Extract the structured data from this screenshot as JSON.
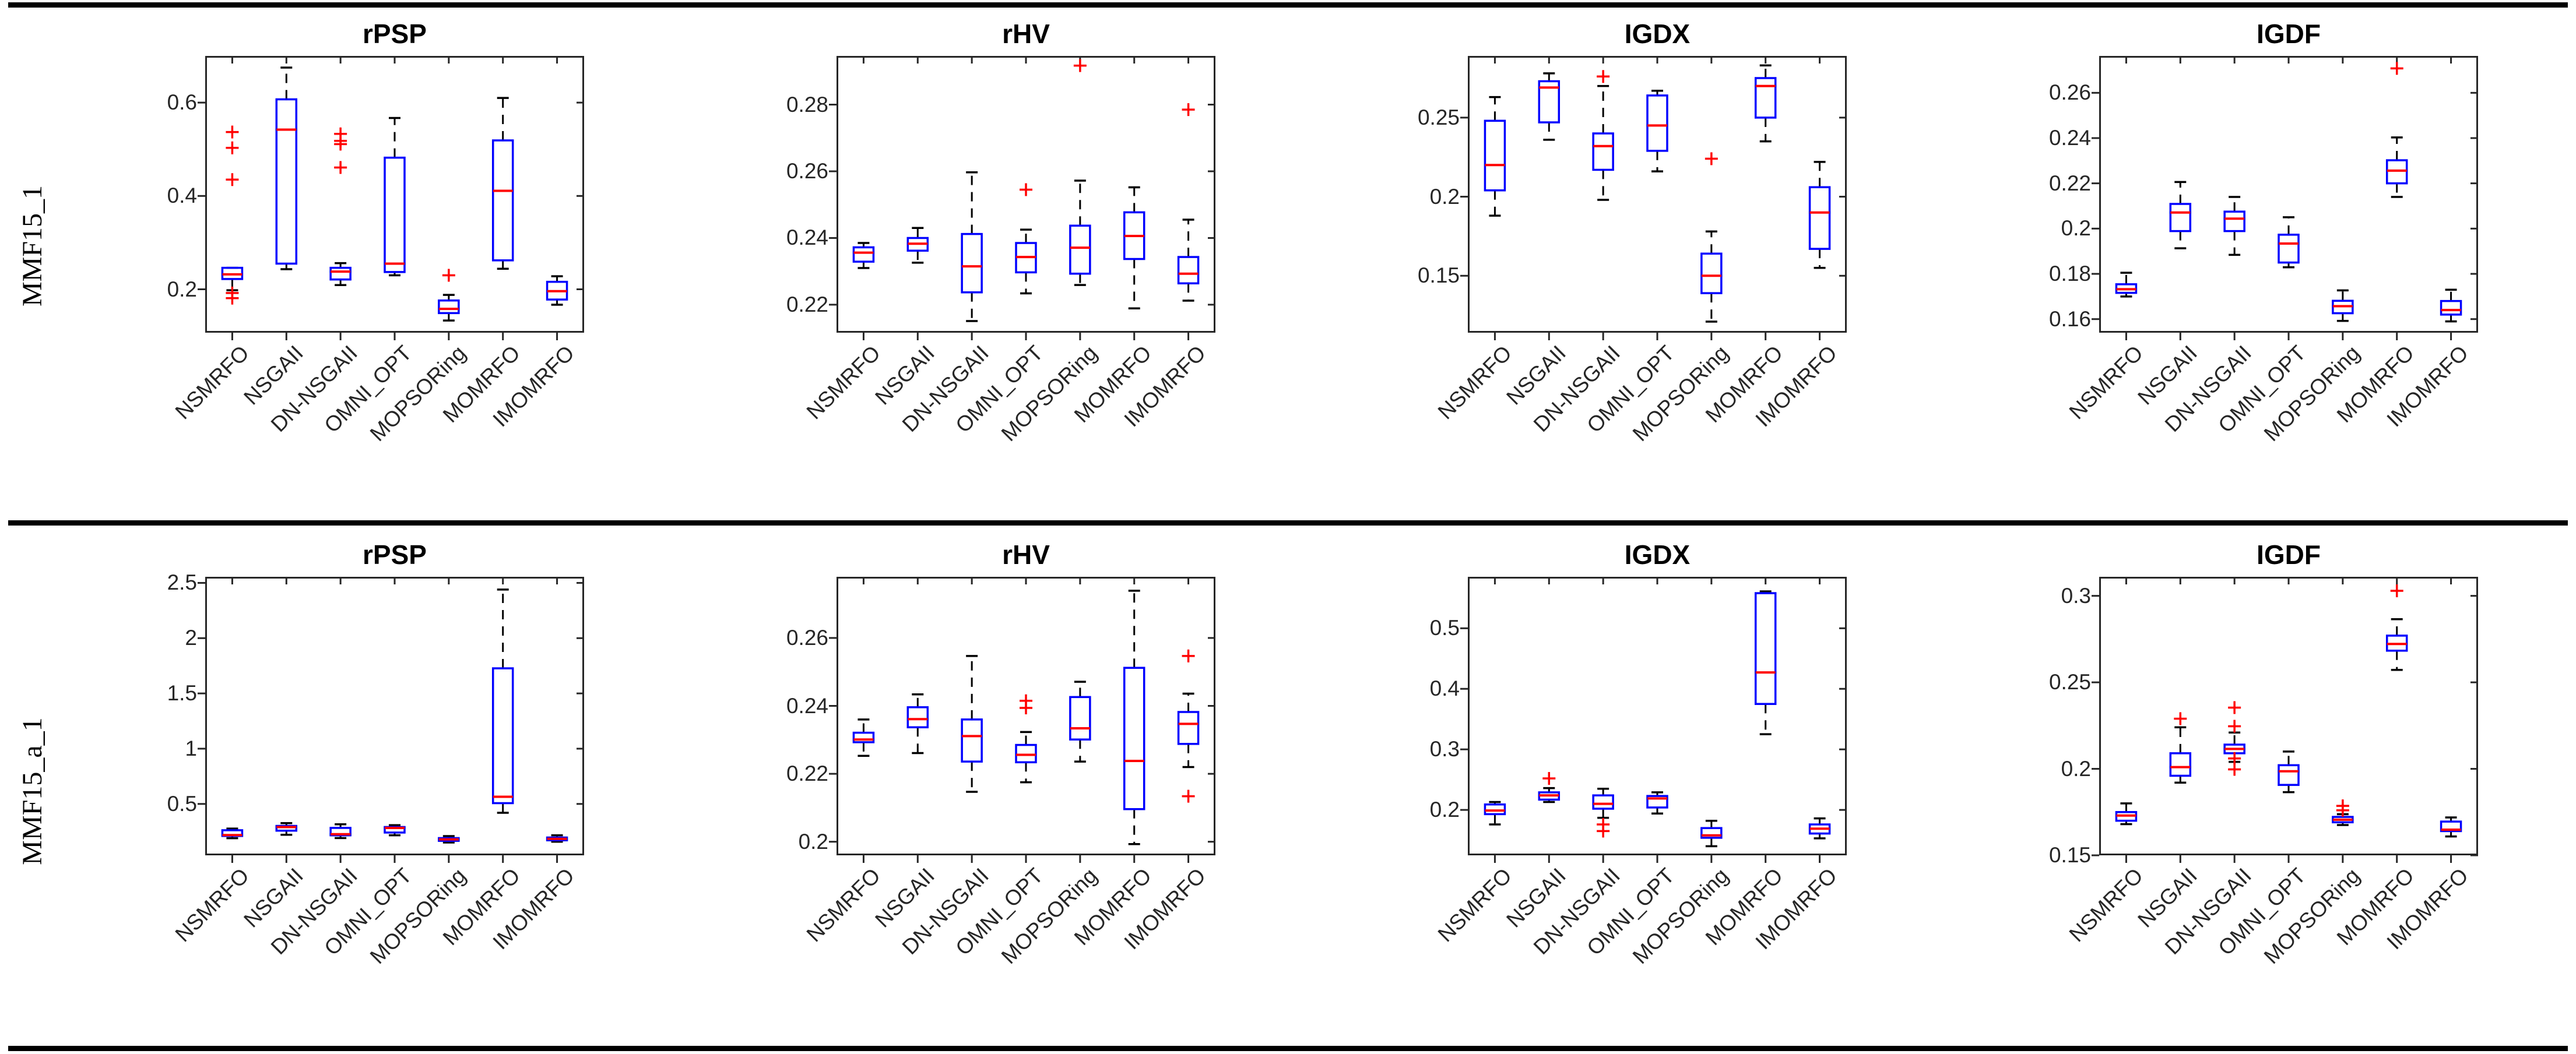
{
  "row_labels": [
    "MMF15_1",
    "MMF15_a_1"
  ],
  "metrics": [
    "rPSP",
    "rHV",
    "IGDX",
    "IGDF"
  ],
  "algorithms": [
    "NSMRFO",
    "NSGAII",
    "DN-NSGAII",
    "OMNI_OPT",
    "MOPSORing",
    "MOMRFO",
    "IMOMRFO"
  ],
  "colors": {
    "box_edge": "#0000ff",
    "median": "#ff0000",
    "whisker": "#000000",
    "outlier": "#ff0000",
    "axis": "#262626",
    "tick_label": "#262626",
    "title": "#000000",
    "rule": "#000000",
    "background": "#ffffff"
  },
  "chart_data": [
    {
      "type": "boxplot",
      "row": "MMF15_1",
      "title": "rPSP",
      "ylim": [
        0.107,
        0.7
      ],
      "yticks": [
        0.2,
        0.4,
        0.6
      ],
      "ytick_labels": [
        "0.2",
        "0.4",
        "0.6"
      ],
      "categories": [
        "NSMRFO",
        "NSGAII",
        "DN-NSGAII",
        "OMNI_OPT",
        "MOPSORing",
        "MOMRFO",
        "IMOMRFO"
      ],
      "series": [
        {
          "name": "NSMRFO",
          "whislo": 0.198,
          "q1": 0.222,
          "med": 0.232,
          "q3": 0.246,
          "whishi": 0.246,
          "fliers": [
            0.537,
            0.503,
            0.435,
            0.192,
            0.181
          ]
        },
        {
          "name": "NSGAII",
          "whislo": 0.243,
          "q1": 0.255,
          "med": 0.542,
          "q3": 0.607,
          "whishi": 0.675,
          "fliers": []
        },
        {
          "name": "DN-NSGAII",
          "whislo": 0.209,
          "q1": 0.221,
          "med": 0.238,
          "q3": 0.246,
          "whishi": 0.256,
          "fliers": [
            0.533,
            0.518,
            0.511,
            0.461
          ]
        },
        {
          "name": "OMNI_OPT",
          "whislo": 0.23,
          "q1": 0.237,
          "med": 0.255,
          "q3": 0.482,
          "whishi": 0.567,
          "fliers": []
        },
        {
          "name": "MOPSORing",
          "whislo": 0.133,
          "q1": 0.149,
          "med": 0.158,
          "q3": 0.176,
          "whishi": 0.188,
          "fliers": [
            0.23
          ]
        },
        {
          "name": "MOMRFO",
          "whislo": 0.244,
          "q1": 0.262,
          "med": 0.411,
          "q3": 0.519,
          "whishi": 0.61,
          "fliers": []
        },
        {
          "name": "IMOMRFO",
          "whislo": 0.167,
          "q1": 0.178,
          "med": 0.196,
          "q3": 0.216,
          "whishi": 0.228,
          "fliers": []
        }
      ]
    },
    {
      "type": "boxplot",
      "row": "MMF15_1",
      "title": "rHV",
      "ylim": [
        0.2116,
        0.2946
      ],
      "yticks": [
        0.22,
        0.24,
        0.26,
        0.28
      ],
      "ytick_labels": [
        "0.22",
        "0.24",
        "0.26",
        "0.28"
      ],
      "categories": [
        "NSMRFO",
        "NSGAII",
        "DN-NSGAII",
        "OMNI_OPT",
        "MOPSORing",
        "MOMRFO",
        "IMOMRFO"
      ],
      "series": [
        {
          "name": "NSMRFO",
          "whislo": 0.231,
          "q1": 0.2329,
          "med": 0.2356,
          "q3": 0.2372,
          "whishi": 0.2385,
          "fliers": []
        },
        {
          "name": "NSGAII",
          "whislo": 0.2326,
          "q1": 0.2362,
          "med": 0.2383,
          "q3": 0.24,
          "whishi": 0.243,
          "fliers": []
        },
        {
          "name": "DN-NSGAII",
          "whislo": 0.2151,
          "q1": 0.2237,
          "med": 0.2315,
          "q3": 0.2412,
          "whishi": 0.2597,
          "fliers": []
        },
        {
          "name": "OMNI_OPT",
          "whislo": 0.2234,
          "q1": 0.2297,
          "med": 0.2343,
          "q3": 0.2385,
          "whishi": 0.2425,
          "fliers": [
            0.2545
          ]
        },
        {
          "name": "MOPSORing",
          "whislo": 0.2259,
          "q1": 0.2293,
          "med": 0.2371,
          "q3": 0.2437,
          "whishi": 0.2572,
          "fliers": [
            0.2917
          ]
        },
        {
          "name": "MOMRFO",
          "whislo": 0.2189,
          "q1": 0.2337,
          "med": 0.2406,
          "q3": 0.2477,
          "whishi": 0.2552,
          "fliers": []
        },
        {
          "name": "IMOMRFO",
          "whislo": 0.2212,
          "q1": 0.2264,
          "med": 0.2293,
          "q3": 0.2343,
          "whishi": 0.2455,
          "fliers": [
            0.2785
          ]
        }
      ]
    },
    {
      "type": "boxplot",
      "row": "MMF15_1",
      "title": "IGDX",
      "ylim": [
        0.114,
        0.289
      ],
      "yticks": [
        0.15,
        0.2,
        0.25
      ],
      "ytick_labels": [
        "0.15",
        "0.2",
        "0.25"
      ],
      "categories": [
        "NSMRFO",
        "NSGAII",
        "DN-NSGAII",
        "OMNI_OPT",
        "MOPSORing",
        "MOMRFO",
        "IMOMRFO"
      ],
      "series": [
        {
          "name": "NSMRFO",
          "whislo": 0.188,
          "q1": 0.204,
          "med": 0.22,
          "q3": 0.248,
          "whishi": 0.263,
          "fliers": []
        },
        {
          "name": "NSGAII",
          "whislo": 0.236,
          "q1": 0.247,
          "med": 0.269,
          "q3": 0.273,
          "whishi": 0.278,
          "fliers": []
        },
        {
          "name": "DN-NSGAII",
          "whislo": 0.198,
          "q1": 0.217,
          "med": 0.232,
          "q3": 0.24,
          "whishi": 0.27,
          "fliers": [
            0.276
          ]
        },
        {
          "name": "OMNI_OPT",
          "whislo": 0.216,
          "q1": 0.229,
          "med": 0.245,
          "q3": 0.264,
          "whishi": 0.267,
          "fliers": []
        },
        {
          "name": "MOPSORing",
          "whislo": 0.121,
          "q1": 0.139,
          "med": 0.15,
          "q3": 0.164,
          "whishi": 0.178,
          "fliers": [
            0.224
          ]
        },
        {
          "name": "MOMRFO",
          "whislo": 0.235,
          "q1": 0.25,
          "med": 0.27,
          "q3": 0.275,
          "whishi": 0.283,
          "fliers": []
        },
        {
          "name": "IMOMRFO",
          "whislo": 0.155,
          "q1": 0.167,
          "med": 0.19,
          "q3": 0.206,
          "whishi": 0.222,
          "fliers": []
        }
      ]
    },
    {
      "type": "boxplot",
      "row": "MMF15_1",
      "title": "IGDF",
      "ylim": [
        0.154,
        0.2763
      ],
      "yticks": [
        0.16,
        0.18,
        0.2,
        0.22,
        0.24,
        0.26
      ],
      "ytick_labels": [
        "0.16",
        "0.18",
        "0.2",
        "0.22",
        "0.24",
        "0.26"
      ],
      "categories": [
        "NSMRFO",
        "NSGAII",
        "DN-NSGAII",
        "OMNI_OPT",
        "MOPSORing",
        "MOMRFO",
        "IMOMRFO"
      ],
      "series": [
        {
          "name": "NSMRFO",
          "whislo": 0.17,
          "q1": 0.1716,
          "med": 0.1732,
          "q3": 0.1754,
          "whishi": 0.1805,
          "fliers": []
        },
        {
          "name": "NSGAII",
          "whislo": 0.1913,
          "q1": 0.1989,
          "med": 0.2071,
          "q3": 0.2109,
          "whishi": 0.2206,
          "fliers": []
        },
        {
          "name": "DN-NSGAII",
          "whislo": 0.1884,
          "q1": 0.1989,
          "med": 0.2044,
          "q3": 0.2075,
          "whishi": 0.214,
          "fliers": []
        },
        {
          "name": "OMNI_OPT",
          "whislo": 0.1829,
          "q1": 0.185,
          "med": 0.1934,
          "q3": 0.1973,
          "whishi": 0.205,
          "fliers": []
        },
        {
          "name": "MOPSORing",
          "whislo": 0.1592,
          "q1": 0.1626,
          "med": 0.1657,
          "q3": 0.1681,
          "whishi": 0.1727,
          "fliers": []
        },
        {
          "name": "MOMRFO",
          "whislo": 0.214,
          "q1": 0.22,
          "med": 0.2256,
          "q3": 0.2302,
          "whishi": 0.2403,
          "fliers": [
            0.2708
          ]
        },
        {
          "name": "IMOMRFO",
          "whislo": 0.159,
          "q1": 0.162,
          "med": 0.164,
          "q3": 0.168,
          "whishi": 0.173,
          "fliers": []
        }
      ]
    },
    {
      "type": "boxplot",
      "row": "MMF15_a_1",
      "title": "rPSP",
      "ylim": [
        0.035,
        2.555
      ],
      "yticks": [
        0.5,
        1,
        1.5,
        2,
        2.5
      ],
      "ytick_labels": [
        "0.5",
        "1",
        "1.5",
        "2",
        "2.5"
      ],
      "categories": [
        "NSMRFO",
        "NSGAII",
        "DN-NSGAII",
        "OMNI_OPT",
        "MOPSORing",
        "MOMRFO",
        "IMOMRFO"
      ],
      "series": [
        {
          "name": "NSMRFO",
          "whislo": 0.19,
          "q1": 0.21,
          "med": 0.218,
          "q3": 0.262,
          "whishi": 0.277,
          "fliers": []
        },
        {
          "name": "NSGAII",
          "whislo": 0.221,
          "q1": 0.258,
          "med": 0.291,
          "q3": 0.301,
          "whishi": 0.326,
          "fliers": []
        },
        {
          "name": "DN-NSGAII",
          "whislo": 0.191,
          "q1": 0.216,
          "med": 0.226,
          "q3": 0.283,
          "whishi": 0.316,
          "fliers": []
        },
        {
          "name": "OMNI_OPT",
          "whislo": 0.216,
          "q1": 0.241,
          "med": 0.283,
          "q3": 0.291,
          "whishi": 0.308,
          "fliers": []
        },
        {
          "name": "MOPSORing",
          "whislo": 0.151,
          "q1": 0.166,
          "med": 0.179,
          "q3": 0.191,
          "whishi": 0.209,
          "fliers": []
        },
        {
          "name": "MOMRFO",
          "whislo": 0.42,
          "q1": 0.507,
          "med": 0.565,
          "q3": 1.727,
          "whishi": 2.44,
          "fliers": []
        },
        {
          "name": "IMOMRFO",
          "whislo": 0.158,
          "q1": 0.171,
          "med": 0.184,
          "q3": 0.196,
          "whishi": 0.216,
          "fliers": []
        }
      ]
    },
    {
      "type": "boxplot",
      "row": "MMF15_a_1",
      "title": "rHV",
      "ylim": [
        0.196,
        0.278
      ],
      "yticks": [
        0.2,
        0.22,
        0.24,
        0.26
      ],
      "ytick_labels": [
        "0.2",
        "0.22",
        "0.24",
        "0.26"
      ],
      "categories": [
        "NSMRFO",
        "NSGAII",
        "DN-NSGAII",
        "OMNI_OPT",
        "MOPSORing",
        "MOMRFO",
        "IMOMRFO"
      ],
      "series": [
        {
          "name": "NSMRFO",
          "whislo": 0.2253,
          "q1": 0.2293,
          "med": 0.2301,
          "q3": 0.2321,
          "whishi": 0.236,
          "fliers": []
        },
        {
          "name": "NSGAII",
          "whislo": 0.2261,
          "q1": 0.2337,
          "med": 0.2361,
          "q3": 0.2396,
          "whishi": 0.2434,
          "fliers": []
        },
        {
          "name": "DN-NSGAII",
          "whislo": 0.2147,
          "q1": 0.2236,
          "med": 0.2311,
          "q3": 0.236,
          "whishi": 0.2547,
          "fliers": []
        },
        {
          "name": "OMNI_OPT",
          "whislo": 0.2175,
          "q1": 0.2234,
          "med": 0.2256,
          "q3": 0.2285,
          "whishi": 0.2323,
          "fliers": [
            0.2394,
            0.2415
          ]
        },
        {
          "name": "MOPSORing",
          "whislo": 0.2236,
          "q1": 0.2301,
          "med": 0.2334,
          "q3": 0.2426,
          "whishi": 0.2471,
          "fliers": []
        },
        {
          "name": "MOMRFO",
          "whislo": 0.1993,
          "q1": 0.2096,
          "med": 0.2238,
          "q3": 0.2512,
          "whishi": 0.2739,
          "fliers": []
        },
        {
          "name": "IMOMRFO",
          "whislo": 0.222,
          "q1": 0.2288,
          "med": 0.2347,
          "q3": 0.2382,
          "whishi": 0.2436,
          "fliers": [
            0.2547,
            0.2134
          ]
        }
      ]
    },
    {
      "type": "boxplot",
      "row": "MMF15_a_1",
      "title": "IGDX",
      "ylim": [
        0.125,
        0.585
      ],
      "yticks": [
        0.2,
        0.3,
        0.4,
        0.5
      ],
      "ytick_labels": [
        "0.2",
        "0.3",
        "0.4",
        "0.5"
      ],
      "categories": [
        "NSMRFO",
        "NSGAII",
        "DN-NSGAII",
        "OMNI_OPT",
        "MOPSORing",
        "MOMRFO",
        "IMOMRFO"
      ],
      "series": [
        {
          "name": "NSMRFO",
          "whislo": 0.176,
          "q1": 0.193,
          "med": 0.199,
          "q3": 0.209,
          "whishi": 0.213,
          "fliers": []
        },
        {
          "name": "NSGAII",
          "whislo": 0.213,
          "q1": 0.217,
          "med": 0.224,
          "q3": 0.229,
          "whishi": 0.236,
          "fliers": [
            0.252
          ]
        },
        {
          "name": "DN-NSGAII",
          "whislo": 0.187,
          "q1": 0.202,
          "med": 0.21,
          "q3": 0.224,
          "whishi": 0.235,
          "fliers": [
            0.176,
            0.165
          ]
        },
        {
          "name": "OMNI_OPT",
          "whislo": 0.194,
          "q1": 0.204,
          "med": 0.219,
          "q3": 0.223,
          "whishi": 0.229,
          "fliers": []
        },
        {
          "name": "MOPSORing",
          "whislo": 0.14,
          "q1": 0.154,
          "med": 0.158,
          "q3": 0.17,
          "whishi": 0.182,
          "fliers": []
        },
        {
          "name": "MOMRFO",
          "whislo": 0.325,
          "q1": 0.375,
          "med": 0.427,
          "q3": 0.558,
          "whishi": 0.561,
          "fliers": []
        },
        {
          "name": "IMOMRFO",
          "whislo": 0.153,
          "q1": 0.161,
          "med": 0.169,
          "q3": 0.176,
          "whishi": 0.186,
          "fliers": []
        }
      ]
    },
    {
      "type": "boxplot",
      "row": "MMF15_a_1",
      "title": "IGDF",
      "ylim": [
        0.15,
        0.311
      ],
      "yticks": [
        0.15,
        0.2,
        0.25,
        0.3
      ],
      "ytick_labels": [
        "0.15",
        "0.2",
        "0.25",
        "0.3"
      ],
      "categories": [
        "NSMRFO",
        "NSGAII",
        "DN-NSGAII",
        "OMNI_OPT",
        "MOPSORing",
        "MOMRFO",
        "IMOMRFO"
      ],
      "series": [
        {
          "name": "NSMRFO",
          "whislo": 0.168,
          "q1": 0.17,
          "med": 0.173,
          "q3": 0.175,
          "whishi": 0.18,
          "fliers": []
        },
        {
          "name": "NSGAII",
          "whislo": 0.192,
          "q1": 0.196,
          "med": 0.201,
          "q3": 0.209,
          "whishi": 0.224,
          "fliers": [
            0.229
          ]
        },
        {
          "name": "DN-NSGAII",
          "whislo": 0.204,
          "q1": 0.209,
          "med": 0.2115,
          "q3": 0.214,
          "whishi": 0.221,
          "fliers": [
            0.2354,
            0.2246,
            0.206,
            0.1997
          ]
        },
        {
          "name": "OMNI_OPT",
          "whislo": 0.1865,
          "q1": 0.1907,
          "med": 0.1986,
          "q3": 0.2021,
          "whishi": 0.21,
          "fliers": []
        },
        {
          "name": "MOPSORing",
          "whislo": 0.1675,
          "q1": 0.1691,
          "med": 0.1706,
          "q3": 0.1722,
          "whishi": 0.1738,
          "fliers": [
            0.1786,
            0.176
          ]
        },
        {
          "name": "MOMRFO",
          "whislo": 0.2572,
          "q1": 0.2683,
          "med": 0.2722,
          "q3": 0.277,
          "whishi": 0.2865,
          "fliers": [
            0.3029
          ]
        },
        {
          "name": "IMOMRFO",
          "whislo": 0.1609,
          "q1": 0.164,
          "med": 0.1648,
          "q3": 0.1695,
          "whishi": 0.1719,
          "fliers": []
        }
      ]
    }
  ]
}
